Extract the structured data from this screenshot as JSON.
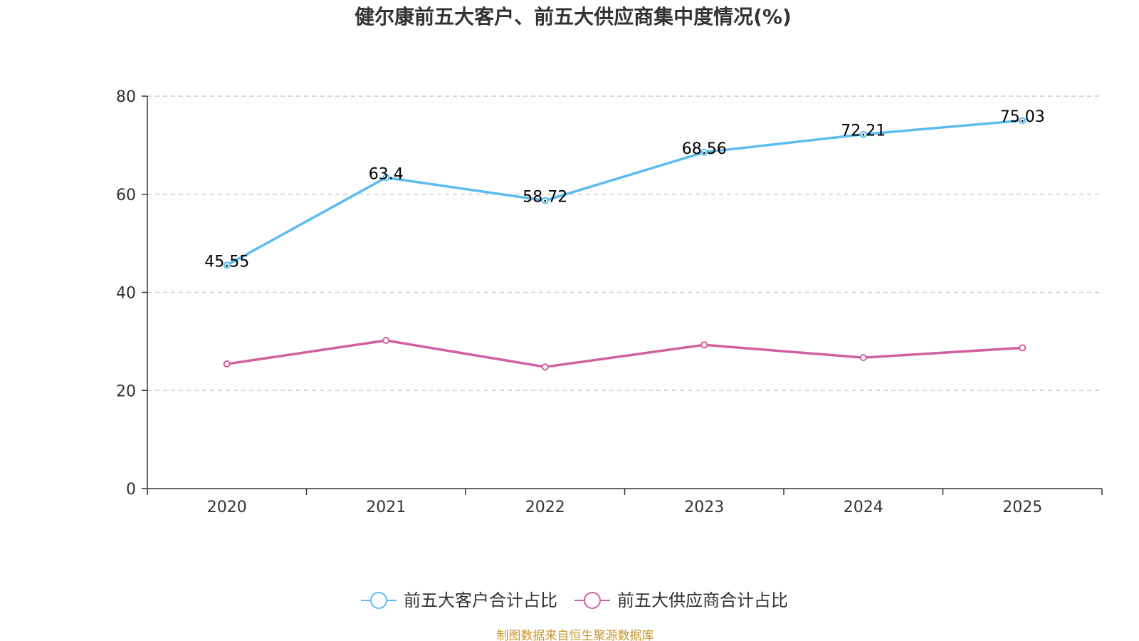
{
  "chart_data": {
    "type": "line",
    "title": "健尔康前五大客户、前五大供应商集中度情况(%)",
    "categories": [
      "2020",
      "2021",
      "2022",
      "2023",
      "2024",
      "2025"
    ],
    "ylim": [
      0,
      80
    ],
    "yticks": [
      "0",
      "20",
      "40",
      "60",
      "80"
    ],
    "grid": true,
    "legend_position": "bottom-center",
    "series": [
      {
        "name": "前五大客户合计占比",
        "color": "#5bbcf0",
        "values": [
          45.55,
          63.4,
          58.72,
          68.56,
          72.21,
          75.03
        ],
        "labels": [
          "45.55",
          "63.4",
          "58.72",
          "68.56",
          "72.21",
          "75.03"
        ],
        "show_labels": true
      },
      {
        "name": "前五大供应商合计占比",
        "color": "#d0609f",
        "values": [
          25.4,
          30.2,
          24.8,
          29.3,
          26.7,
          28.7
        ],
        "show_labels": false
      }
    ]
  },
  "source": {
    "text": "制图数据来自恒生聚源数据库",
    "color": "#c8962e"
  }
}
